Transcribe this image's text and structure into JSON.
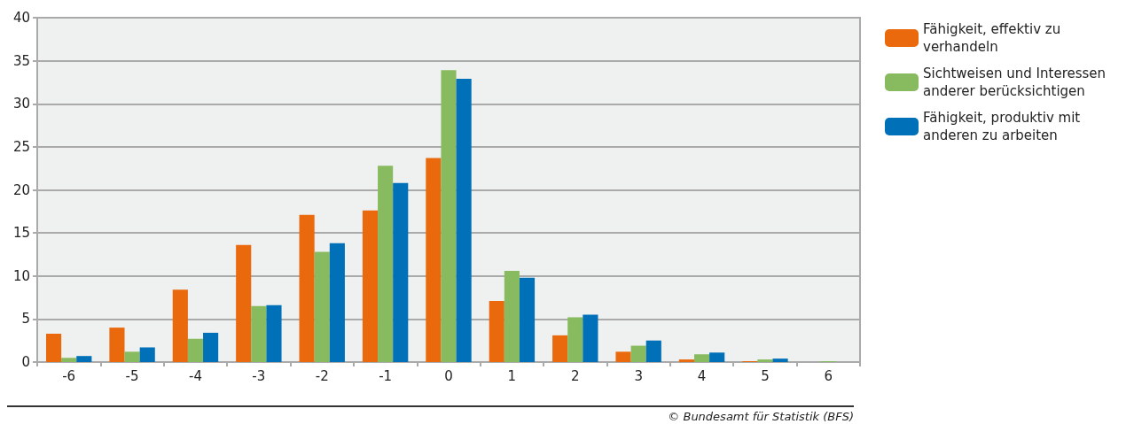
{
  "chart_data": {
    "type": "bar",
    "categories": [
      "-6",
      "-5",
      "-4",
      "-3",
      "-2",
      "-1",
      "0",
      "1",
      "2",
      "3",
      "4",
      "5",
      "6"
    ],
    "series": [
      {
        "name": "Fähigkeit, effektiv zu verhandeln",
        "color": "#e9690c",
        "values": [
          3.3,
          4.0,
          8.4,
          13.6,
          17.1,
          17.6,
          23.7,
          7.1,
          3.1,
          1.2,
          0.3,
          0.1,
          0
        ]
      },
      {
        "name": "Sichtweisen und Interessen anderer berücksichtigen",
        "color": "#88bb5f",
        "values": [
          0.5,
          1.2,
          2.7,
          6.5,
          12.8,
          22.8,
          33.9,
          10.6,
          5.2,
          1.9,
          0.9,
          0.3,
          0.1
        ]
      },
      {
        "name": "Fähigkeit, produktiv mit anderen zu arbeiten",
        "color": "#0070b8",
        "values": [
          0.7,
          1.7,
          3.4,
          6.6,
          13.8,
          20.8,
          32.9,
          9.8,
          5.5,
          2.5,
          1.1,
          0.4,
          0
        ]
      }
    ],
    "ylim": [
      0,
      40
    ],
    "yticks": [
      0,
      5,
      10,
      15,
      20,
      25,
      30,
      35,
      40
    ],
    "grid": "y",
    "legend": "top right",
    "annotations": [
      "© Bundesamt für Statistik (BFS)"
    ]
  }
}
